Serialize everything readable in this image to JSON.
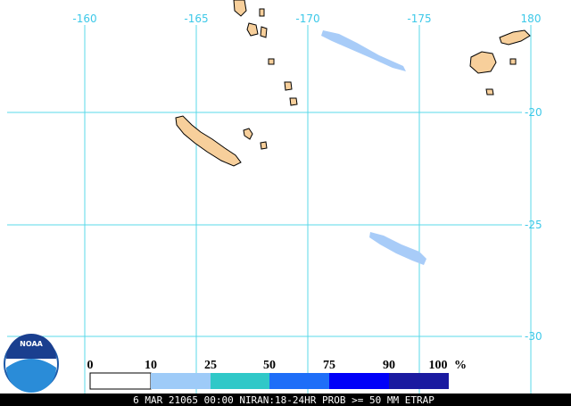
{
  "map": {
    "lon_labels": [
      "-160",
      "-165",
      "-170",
      "-175",
      "180"
    ],
    "lat_labels": [
      "-20",
      "-25",
      "-30"
    ]
  },
  "legend": {
    "labels": [
      "0",
      "10",
      "25",
      "50",
      "75",
      "90",
      "100"
    ],
    "unit": "%"
  },
  "logo": {
    "text": "NOAA"
  },
  "footer": {
    "text": "6 MAR 21065 00:00 NIRAN:18-24HR PROB >= 50 MM ETRAP"
  }
}
